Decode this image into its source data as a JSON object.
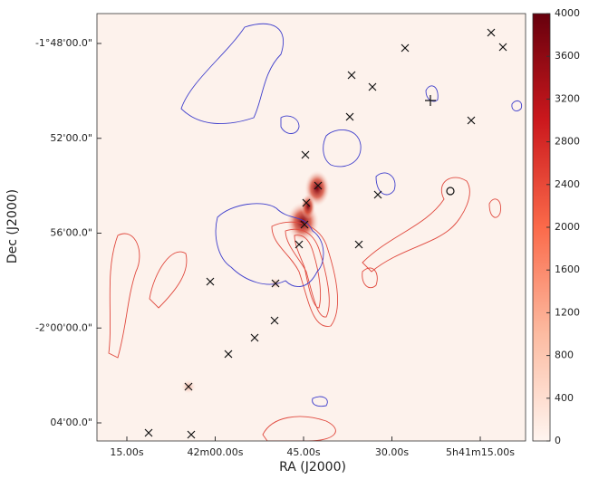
{
  "chart_data": {
    "type": "image",
    "x_label": "RA (J2000)",
    "y_label": "Dec (J2000)",
    "x_tick_labels": [
      "15.00s",
      "42m00.00s",
      "45.00s",
      "30.00s",
      "5h41m15.00s"
    ],
    "y_tick_labels": [
      "-1°48'00.0\"",
      "52'00.0\"",
      "56'00.0\"",
      "-2°00'00.0\"",
      "04'00.0\""
    ],
    "colorbar": {
      "lim": [
        0,
        4000
      ],
      "ticks": [
        0,
        400,
        800,
        1200,
        1600,
        2000,
        2400,
        2800,
        3200,
        3600,
        4000
      ],
      "colors": [
        "#fff5f0",
        "#fcbba1",
        "#fb6a4a",
        "#cb181d",
        "#67000d"
      ]
    }
  }
}
